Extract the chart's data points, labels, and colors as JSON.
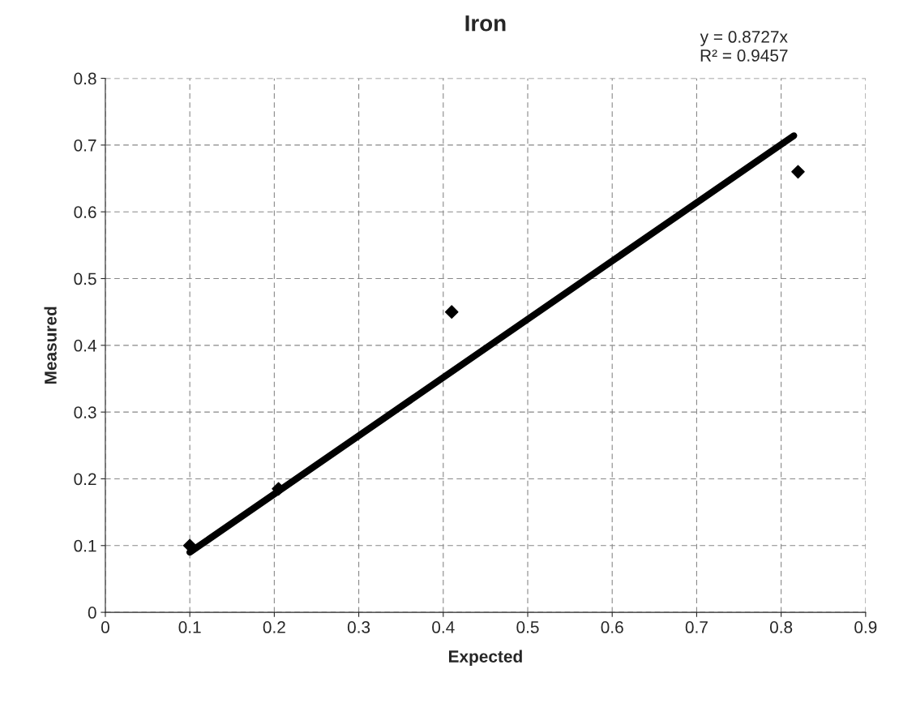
{
  "chart_data": {
    "type": "scatter",
    "title": "Iron",
    "xlabel": "Expected",
    "ylabel": "Measured",
    "xlim": [
      0,
      0.9
    ],
    "xticks": [
      0,
      0.1,
      0.2,
      0.3,
      0.4,
      0.5,
      0.6,
      0.7,
      0.8,
      0.9
    ],
    "ylim": [
      0,
      0.8
    ],
    "yticks": [
      0,
      0.1,
      0.2,
      0.3,
      0.4,
      0.5,
      0.6,
      0.7,
      0.8
    ],
    "grid": true,
    "legend": false,
    "series": [
      {
        "color": "#000000",
        "marker": "diamond",
        "x": [
          0.1,
          0.205,
          0.41,
          0.82
        ],
        "values": [
          0.1,
          0.185,
          0.45,
          0.66
        ]
      },
      {
        "type": "line",
        "color": "#000000",
        "marker": "none",
        "line_style": "solid",
        "x": [
          0.1,
          0.815
        ],
        "values": [
          0.09,
          0.714
        ]
      }
    ],
    "annotations": [
      "y = 0.8727x",
      "R² = 0.9457"
    ]
  }
}
